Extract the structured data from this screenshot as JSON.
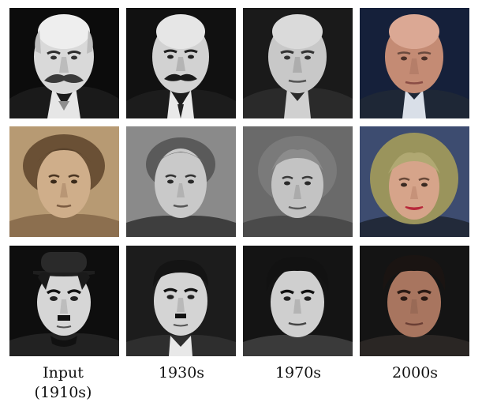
{
  "columns": [
    {
      "label": "Input",
      "sublabel": "(1910s)"
    },
    {
      "label": "1930s",
      "sublabel": ""
    },
    {
      "label": "1970s",
      "sublabel": ""
    },
    {
      "label": "2000s",
      "sublabel": ""
    }
  ],
  "colors": {
    "sepia_bg": "#c9b08a",
    "sepia_skin": "#c9a582",
    "gray_dark": "#141414",
    "color_skin": "#c08a70",
    "color_bg": "#3a4a6b",
    "hair_blonde": "#a8a06a"
  }
}
